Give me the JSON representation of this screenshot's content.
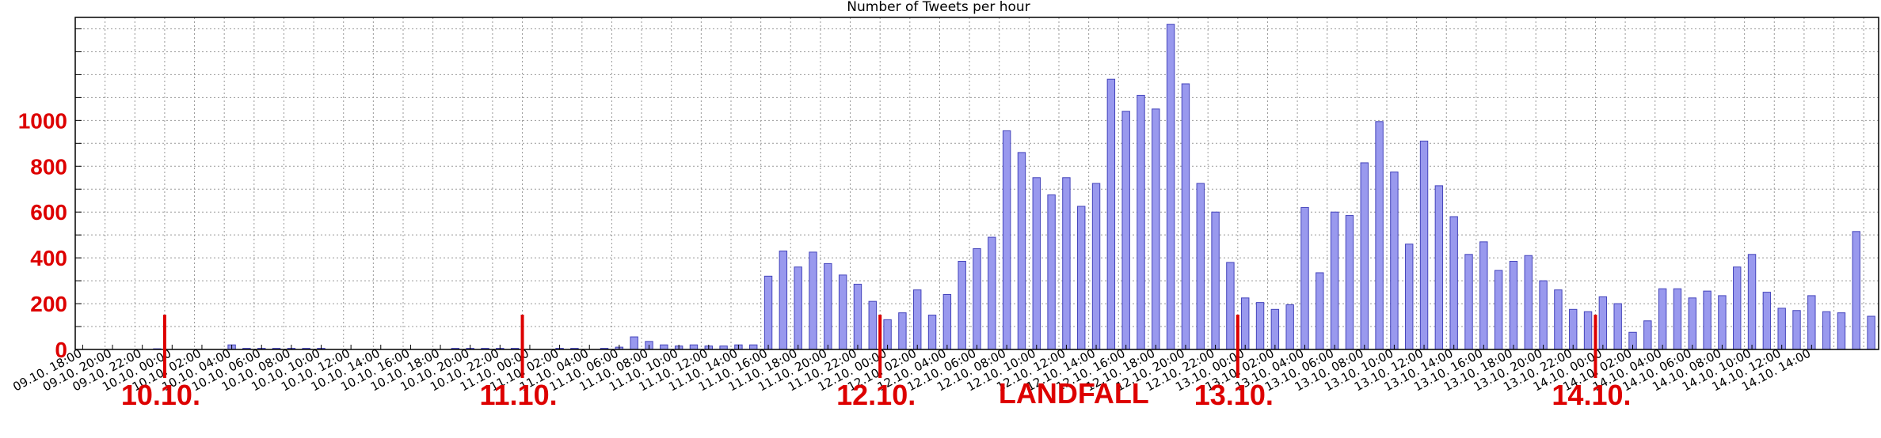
{
  "chart_data": {
    "type": "bar",
    "title": "Number of Tweets per hour",
    "xlabel": "",
    "ylabel": "",
    "ylim": [
      0,
      1450
    ],
    "grid": true,
    "bar_color": "#9999ee",
    "bar_edge_color": "#4444bb",
    "annotation_color": "#dd0000",
    "y_ticks": [
      "0",
      "200",
      "400",
      "600",
      "800",
      "1000"
    ],
    "x_tick_labels": [
      "09.10. 18:00",
      "09.10. 20:00",
      "09.10. 22:00",
      "10.10. 00:00",
      "10.10. 02:00",
      "10.10. 04:00",
      "10.10. 06:00",
      "10.10. 08:00",
      "10.10. 10:00",
      "10.10. 12:00",
      "10.10. 14:00",
      "10.10. 16:00",
      "10.10. 18:00",
      "10.10. 20:00",
      "10.10. 22:00",
      "11.10. 00:00",
      "11.10. 02:00",
      "11.10. 04:00",
      "11.10. 06:00",
      "11.10. 08:00",
      "11.10. 10:00",
      "11.10. 12:00",
      "11.10. 14:00",
      "11.10. 16:00",
      "11.10. 18:00",
      "11.10. 20:00",
      "11.10. 22:00",
      "12.10. 00:00",
      "12.10. 02:00",
      "12.10. 04:00",
      "12.10. 06:00",
      "12.10. 08:00",
      "12.10. 10:00",
      "12.10. 12:00",
      "12.10. 14:00",
      "12.10. 16:00",
      "12.10. 18:00",
      "12.10. 20:00",
      "12.10. 22:00",
      "13.10. 00:00",
      "13.10. 02:00",
      "13.10. 04:00",
      "13.10. 06:00",
      "13.10. 08:00",
      "13.10. 10:00",
      "13.10. 12:00",
      "13.10. 14:00",
      "13.10. 16:00",
      "13.10. 18:00",
      "13.10. 20:00",
      "13.10. 22:00",
      "14.10. 00:00",
      "14.10. 02:00",
      "14.10. 04:00",
      "14.10. 06:00",
      "14.10. 08:00",
      "14.10. 10:00",
      "14.10. 12:00",
      "14.10. 14:00"
    ],
    "values": [
      0,
      0,
      0,
      0,
      0,
      3,
      0,
      0,
      0,
      0,
      20,
      5,
      5,
      5,
      5,
      5,
      5,
      0,
      0,
      0,
      0,
      0,
      0,
      0,
      0,
      5,
      5,
      5,
      5,
      5,
      0,
      0,
      5,
      5,
      0,
      5,
      10,
      55,
      35,
      20,
      15,
      20,
      15,
      15,
      20,
      20,
      320,
      430,
      360,
      425,
      375,
      325,
      285,
      210,
      130,
      160,
      260,
      150,
      240,
      385,
      440,
      490,
      955,
      860,
      750,
      675,
      750,
      625,
      725,
      1180,
      1040,
      1110,
      1050,
      1420,
      1160,
      725,
      600,
      380,
      225,
      205,
      175,
      195,
      620,
      335,
      600,
      585,
      815,
      995,
      775,
      460,
      910,
      715,
      580,
      415,
      470,
      345,
      385,
      410,
      300,
      260,
      175,
      165,
      230,
      200,
      75,
      125,
      265,
      265,
      225,
      255,
      235,
      360,
      415,
      250,
      180,
      170,
      235,
      165,
      160,
      515,
      145
    ],
    "day_markers": [
      {
        "label": "10.10.",
        "hour_index": 6
      },
      {
        "label": "11.10.",
        "hour_index": 30
      },
      {
        "label": "12.10.",
        "hour_index": 54
      },
      {
        "label": "13.10.",
        "hour_index": 78
      },
      {
        "label": "14.10.",
        "hour_index": 102
      }
    ],
    "annotations": [
      {
        "text": "LANDFALL",
        "near_hour_index": 67
      }
    ]
  }
}
